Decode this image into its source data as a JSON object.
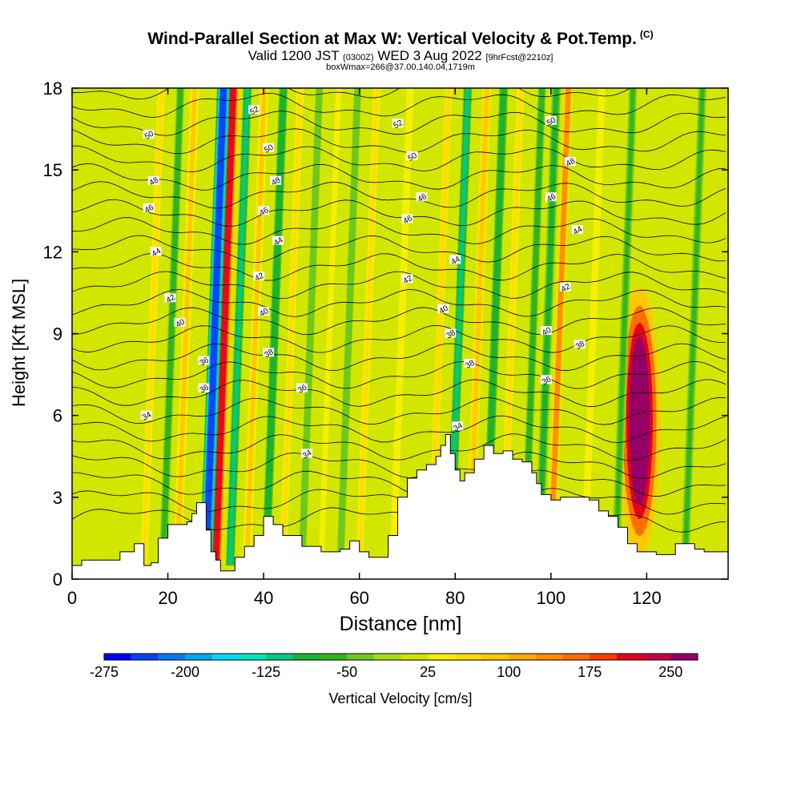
{
  "header": {
    "title": "Wind-Parallel Section at Max W: Vertical Velocity & Pot.Temp.",
    "title_mark": "(C)",
    "valid_prefix": "Valid 1200 JST",
    "valid_utc": "(0300Z)",
    "valid_date": "WED 3 Aug 2022",
    "forecast": "[9hrFcst@2210z]",
    "boxinfo": "boxWmax=266@37.00,140.04,1719m"
  },
  "chart_data": {
    "type": "heatmap",
    "title": "Wind-Parallel Section at Max W: Vertical Velocity & Pot.Temp.",
    "xlabel": "Distance [nm]",
    "ylabel": "Height [Kft MSL]",
    "xlim": [
      0,
      137
    ],
    "ylim": [
      0,
      18
    ],
    "xticks": [
      0,
      20,
      40,
      60,
      80,
      100,
      120
    ],
    "yticks": [
      0,
      3,
      6,
      9,
      12,
      15,
      18
    ],
    "colorbar": {
      "label": "Vertical Velocity [cm/s]",
      "tick_labels": [
        -275,
        -200,
        -125,
        -50,
        25,
        100,
        175,
        250
      ],
      "levels": [
        -275,
        -250,
        -225,
        -200,
        -175,
        -150,
        -125,
        -100,
        -75,
        -50,
        -25,
        0,
        25,
        50,
        75,
        100,
        125,
        150,
        175,
        200,
        225,
        250,
        275
      ],
      "colors": [
        "#0000ff",
        "#0a40f5",
        "#0a78f0",
        "#00aaf0",
        "#00dcf0",
        "#00e6be",
        "#00cd82",
        "#19b432",
        "#32b41e",
        "#6ec81e",
        "#a5dc14",
        "#d2e600",
        "#f5f000",
        "#ffdc00",
        "#ffc800",
        "#ffaa00",
        "#ff8c00",
        "#ff6e00",
        "#ff3c00",
        "#e6001e",
        "#c80046",
        "#960064"
      ]
    },
    "updrafts": [
      {
        "x": 15.0,
        "strength": 55
      },
      {
        "x": 22.0,
        "strength": 75
      },
      {
        "x": 30.0,
        "strength": 200
      },
      {
        "x": 36.5,
        "strength": 80
      },
      {
        "x": 44.0,
        "strength": 55
      },
      {
        "x": 52.0,
        "strength": 40
      },
      {
        "x": 60.0,
        "strength": 50
      },
      {
        "x": 67.0,
        "strength": 45
      },
      {
        "x": 75.0,
        "strength": 65
      },
      {
        "x": 83.0,
        "strength": 85
      },
      {
        "x": 90.0,
        "strength": 55
      },
      {
        "x": 100.0,
        "strength": 140
      },
      {
        "x": 107.0,
        "strength": 45
      },
      {
        "x": 118.5,
        "strength": 266
      }
    ],
    "downdrafts": [
      {
        "x": 19.0,
        "strength": -70
      },
      {
        "x": 28.0,
        "strength": -240
      },
      {
        "x": 33.0,
        "strength": -110
      },
      {
        "x": 40.5,
        "strength": -95
      },
      {
        "x": 48.0,
        "strength": -45
      },
      {
        "x": 56.0,
        "strength": -45
      },
      {
        "x": 79.0,
        "strength": -120
      },
      {
        "x": 86.5,
        "strength": -85
      },
      {
        "x": 94.5,
        "strength": -70
      },
      {
        "x": 97.5,
        "strength": -80
      },
      {
        "x": 113.5,
        "strength": -60
      },
      {
        "x": 128.0,
        "strength": -60
      }
    ],
    "terrain": {
      "x": [
        0,
        2,
        6,
        10,
        13,
        15,
        16.5,
        18,
        20,
        22,
        24,
        25,
        26,
        27,
        28,
        29,
        30,
        31,
        32,
        34,
        36,
        38,
        40,
        42,
        44,
        48,
        52,
        56,
        58,
        60,
        62,
        64,
        66,
        68,
        70,
        72,
        74,
        76,
        77,
        78,
        79,
        80,
        81,
        82,
        84,
        86,
        88,
        90,
        92,
        94,
        96,
        97,
        98,
        100,
        102,
        104,
        106,
        108,
        110,
        112,
        114,
        116,
        118,
        120,
        122,
        124,
        126,
        128,
        130,
        132,
        134,
        136,
        137
      ],
      "height": [
        0.5,
        0.7,
        0.7,
        1.0,
        1.3,
        0.5,
        0.6,
        1.5,
        2.0,
        2.0,
        2.1,
        2.4,
        2.8,
        2.8,
        1.8,
        1.0,
        0.7,
        0.3,
        0.3,
        0.8,
        1.2,
        1.6,
        2.3,
        2.0,
        1.6,
        1.2,
        1.0,
        1.1,
        1.4,
        1.0,
        0.8,
        0.8,
        1.6,
        3.0,
        3.7,
        4.0,
        4.2,
        4.5,
        4.9,
        5.3,
        4.6,
        4.0,
        3.6,
        3.9,
        4.4,
        4.9,
        4.6,
        4.7,
        4.4,
        4.3,
        3.9,
        3.5,
        3.1,
        2.9,
        3.0,
        3.0,
        3.0,
        2.9,
        2.5,
        2.3,
        1.9,
        1.3,
        1.0,
        1.0,
        0.9,
        0.9,
        1.3,
        1.3,
        1.1,
        1.0,
        1.0,
        1.0,
        1.0
      ]
    },
    "contours": {
      "levels": [
        34,
        36,
        38,
        40,
        42,
        44,
        46,
        48,
        50,
        52
      ],
      "labels": [
        {
          "x": 15.5,
          "y": 6.0,
          "text": "34"
        },
        {
          "x": 49,
          "y": 4.6,
          "text": "34"
        },
        {
          "x": 80.5,
          "y": 5.6,
          "text": "34"
        },
        {
          "x": 27.5,
          "y": 7.0,
          "text": "36"
        },
        {
          "x": 48,
          "y": 7.0,
          "text": "36"
        },
        {
          "x": 99,
          "y": 7.3,
          "text": "36"
        },
        {
          "x": 27.5,
          "y": 8.0,
          "text": "36"
        },
        {
          "x": 41,
          "y": 8.3,
          "text": "38"
        },
        {
          "x": 79,
          "y": 9.0,
          "text": "38"
        },
        {
          "x": 83,
          "y": 7.9,
          "text": "38"
        },
        {
          "x": 106,
          "y": 8.6,
          "text": "38"
        },
        {
          "x": 22.5,
          "y": 9.4,
          "text": "40"
        },
        {
          "x": 40,
          "y": 9.8,
          "text": "40"
        },
        {
          "x": 77.5,
          "y": 9.9,
          "text": "40"
        },
        {
          "x": 99,
          "y": 9.1,
          "text": "40"
        },
        {
          "x": 20.5,
          "y": 10.3,
          "text": "42"
        },
        {
          "x": 39,
          "y": 11.1,
          "text": "42"
        },
        {
          "x": 70,
          "y": 11.0,
          "text": "42"
        },
        {
          "x": 103,
          "y": 10.7,
          "text": "42"
        },
        {
          "x": 17.5,
          "y": 12.0,
          "text": "44"
        },
        {
          "x": 43,
          "y": 12.4,
          "text": "44"
        },
        {
          "x": 80,
          "y": 11.7,
          "text": "44"
        },
        {
          "x": 105.5,
          "y": 12.8,
          "text": "44"
        },
        {
          "x": 16,
          "y": 13.6,
          "text": "46"
        },
        {
          "x": 40,
          "y": 13.5,
          "text": "46"
        },
        {
          "x": 70,
          "y": 13.2,
          "text": "46"
        },
        {
          "x": 73,
          "y": 14.0,
          "text": "46"
        },
        {
          "x": 100,
          "y": 14.0,
          "text": "46"
        },
        {
          "x": 17,
          "y": 14.6,
          "text": "48"
        },
        {
          "x": 42.5,
          "y": 14.6,
          "text": "48"
        },
        {
          "x": 104,
          "y": 15.3,
          "text": "48"
        },
        {
          "x": 16,
          "y": 16.3,
          "text": "50"
        },
        {
          "x": 41,
          "y": 15.8,
          "text": "50"
        },
        {
          "x": 71,
          "y": 15.5,
          "text": "50"
        },
        {
          "x": 100,
          "y": 16.8,
          "text": "50"
        },
        {
          "x": 38,
          "y": 17.2,
          "text": "52"
        },
        {
          "x": 68,
          "y": 16.7,
          "text": "52"
        }
      ]
    }
  }
}
